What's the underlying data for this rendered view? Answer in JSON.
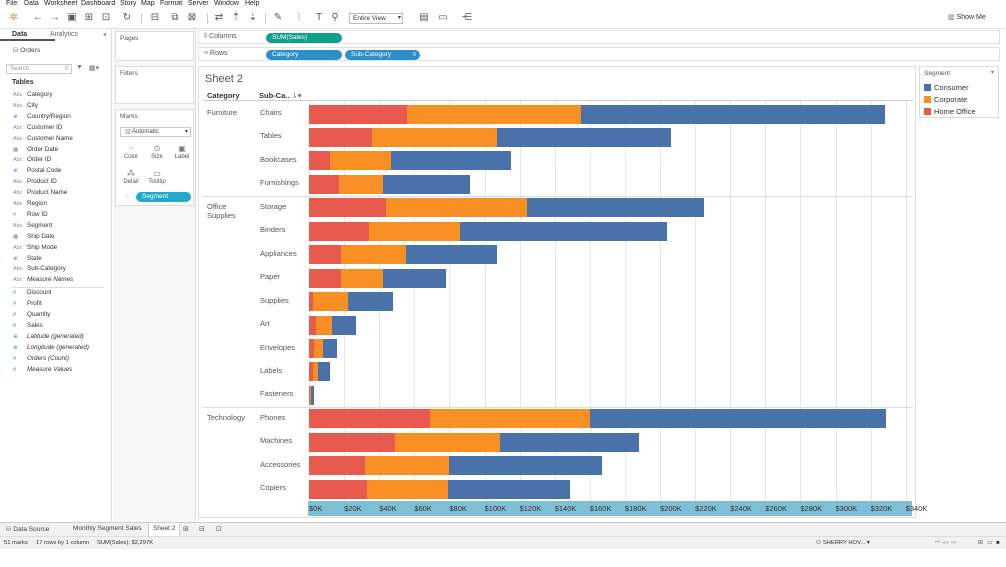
{
  "menu": [
    "File",
    "Data",
    "Worksheet",
    "Dashboard",
    "Story",
    "Map",
    "Format",
    "Server",
    "Window",
    "Help"
  ],
  "toolbar": {
    "fit": "Entire View",
    "show_me": "Show Me"
  },
  "datapane": {
    "tabs": [
      "Data",
      "Analytics"
    ],
    "datasource": "Orders",
    "search_placeholder": "Search",
    "tables_heading": "Tables",
    "dimensions": [
      {
        "icon": "Abc",
        "label": "Category"
      },
      {
        "icon": "Abc",
        "label": "City"
      },
      {
        "icon": "globe",
        "label": "Country/Region"
      },
      {
        "icon": "Abc",
        "label": "Customer ID"
      },
      {
        "icon": "Abc",
        "label": "Customer Name"
      },
      {
        "icon": "date",
        "label": "Order Date"
      },
      {
        "icon": "Abc",
        "label": "Order ID"
      },
      {
        "icon": "globe",
        "label": "Postal Code"
      },
      {
        "icon": "Abc",
        "label": "Product ID"
      },
      {
        "icon": "Abc",
        "label": "Product Name"
      },
      {
        "icon": "Abc",
        "label": "Region"
      },
      {
        "icon": "#",
        "label": "Row ID"
      },
      {
        "icon": "Abc",
        "label": "Segment"
      },
      {
        "icon": "date",
        "label": "Ship Date"
      },
      {
        "icon": "Abc",
        "label": "Ship Mode"
      },
      {
        "icon": "globe",
        "label": "State"
      },
      {
        "icon": "Abc",
        "label": "Sub-Category"
      },
      {
        "icon": "Abc",
        "label": "Measure Names",
        "italic": true
      }
    ],
    "measures": [
      {
        "icon": "#",
        "label": "Discount"
      },
      {
        "icon": "#",
        "label": "Profit"
      },
      {
        "icon": "#",
        "label": "Quantity"
      },
      {
        "icon": "#",
        "label": "Sales"
      },
      {
        "icon": "globe",
        "label": "Latitude (generated)",
        "italic": true
      },
      {
        "icon": "globe",
        "label": "Longitude (generated)",
        "italic": true
      },
      {
        "icon": "#",
        "label": "Orders (Count)",
        "italic": true
      },
      {
        "icon": "#",
        "label": "Measure Values",
        "italic": true
      }
    ]
  },
  "cards": {
    "pages": "Pages",
    "filters": "Filters",
    "marks": "Marks",
    "mark_type": "Automatic",
    "buttons": [
      "Color",
      "Size",
      "Label",
      "Detail",
      "Tooltip"
    ],
    "color_pill": "Segment"
  },
  "shelves": {
    "columns_label": "Columns",
    "rows_label": "Rows",
    "columns_pill": "SUM(Sales)",
    "rows_pills": [
      "Category",
      "Sub-Category"
    ]
  },
  "view": {
    "sheet_title": "Sheet 2",
    "category_header": "Category",
    "subcategory_header": "Sub-Ca.."
  },
  "chart_data": {
    "type": "bar",
    "orientation": "horizontal",
    "stacked": true,
    "xlabel": "",
    "ylabel": "",
    "xlim": [
      0,
      340000
    ],
    "x_ticks": [
      "$0K",
      "$20K",
      "$40K",
      "$60K",
      "$80K",
      "$100K",
      "$120K",
      "$140K",
      "$160K",
      "$180K",
      "$200K",
      "$220K",
      "$240K",
      "$260K",
      "$280K",
      "$300K",
      "$320K",
      "$340K"
    ],
    "groups": [
      {
        "category": "Furniture",
        "subcategories": [
          "Chairs",
          "Tables",
          "Bookcases",
          "Furnishings"
        ]
      },
      {
        "category": "Office Supplies",
        "subcategories": [
          "Storage",
          "Binders",
          "Appliances",
          "Paper",
          "Supplies",
          "Art",
          "Envelopes",
          "Labels",
          "Fasteners"
        ]
      },
      {
        "category": "Technology",
        "subcategories": [
          "Phones",
          "Machines",
          "Accessories",
          "Copiers"
        ]
      }
    ],
    "categories": [
      "Chairs",
      "Tables",
      "Bookcases",
      "Furnishings",
      "Storage",
      "Binders",
      "Appliances",
      "Paper",
      "Supplies",
      "Art",
      "Envelopes",
      "Labels",
      "Fasteners",
      "Phones",
      "Machines",
      "Accessories",
      "Copiers"
    ],
    "legend_title": "Segment",
    "legend_position": "right",
    "series": [
      {
        "name": "Home Office",
        "color": "#e8594e",
        "values": [
          56000,
          36000,
          12000,
          17000,
          44000,
          34000,
          18000,
          18000,
          2000,
          4000,
          3000,
          2000,
          500,
          69000,
          49000,
          32000,
          33000
        ]
      },
      {
        "name": "Corporate",
        "color": "#f78f23",
        "values": [
          99000,
          71000,
          35000,
          25000,
          80000,
          52000,
          37000,
          24000,
          20000,
          9000,
          5000,
          3000,
          400,
          91000,
          60000,
          48000,
          46000
        ]
      },
      {
        "name": "Consumer",
        "color": "#4a72aa",
        "values": [
          173000,
          99000,
          68000,
          50000,
          101000,
          118000,
          52000,
          36000,
          26000,
          14000,
          8000,
          7000,
          1800,
          169000,
          79000,
          87000,
          70000
        ]
      }
    ]
  },
  "tabs": [
    "Data Source",
    "Monthly Segment Sales",
    "Sheet 2"
  ],
  "status": {
    "marks": "51 marks",
    "layout": "17 rows by 1 column",
    "sum": "SUM(Sales): $2,297K",
    "user": "SHERRY HOV..."
  }
}
